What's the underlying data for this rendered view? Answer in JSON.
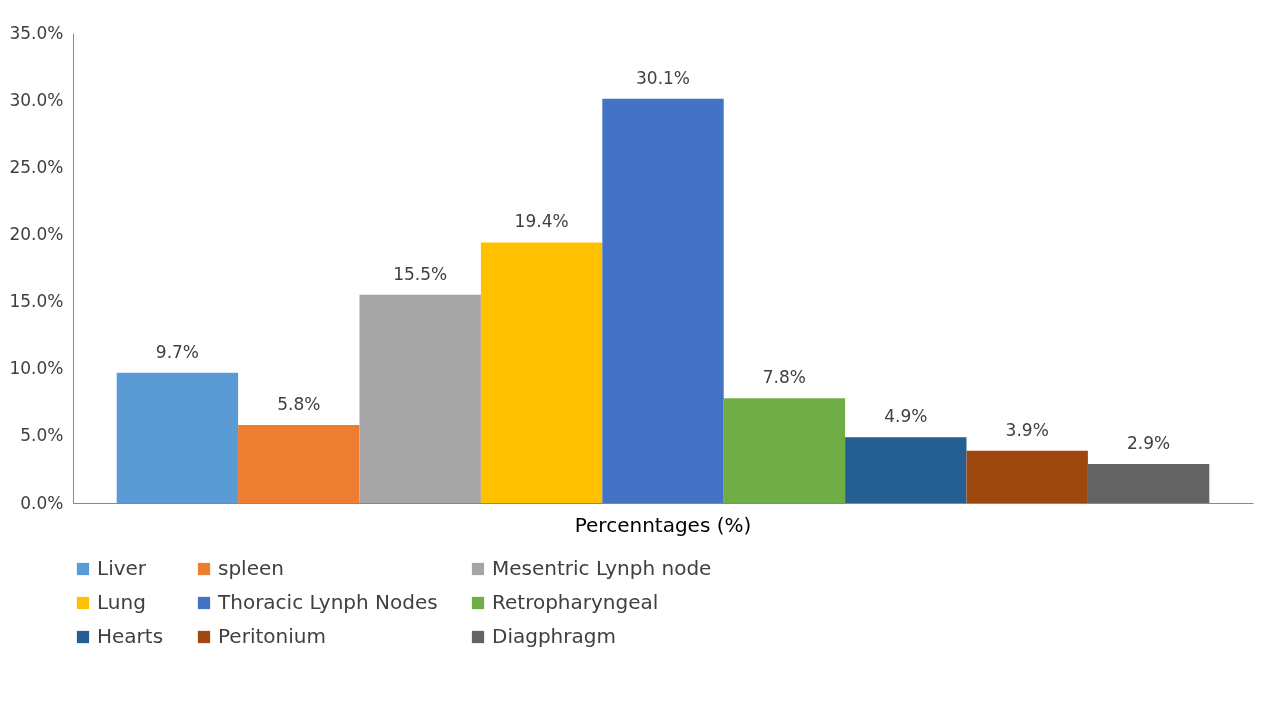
{
  "chart_data": {
    "type": "bar",
    "categories": [
      "Percenntages (%)"
    ],
    "ylim": [
      0,
      35
    ],
    "yticks": [
      {
        "value": 0,
        "label": "0.0%"
      },
      {
        "value": 5,
        "label": "5.0%"
      },
      {
        "value": 10,
        "label": "10.0%"
      },
      {
        "value": 15,
        "label": "15.0%"
      },
      {
        "value": 20,
        "label": "20.0%"
      },
      {
        "value": 25,
        "label": "25.0%"
      },
      {
        "value": 30,
        "label": "30.0%"
      },
      {
        "value": 35,
        "label": "35.0%"
      }
    ],
    "legend": "bottom",
    "series": [
      {
        "name": "Liver",
        "color": "#5b9bd5",
        "values": [
          9.7
        ],
        "value_labels": [
          "9.7%"
        ]
      },
      {
        "name": "spleen",
        "color": "#ed7d31",
        "values": [
          5.8
        ],
        "value_labels": [
          "5.8%"
        ]
      },
      {
        "name": "Mesentric Lynph node",
        "color": "#a5a5a5",
        "values": [
          15.5
        ],
        "value_labels": [
          "15.5%"
        ]
      },
      {
        "name": "Lung",
        "color": "#ffc000",
        "values": [
          19.4
        ],
        "value_labels": [
          "19.4%"
        ]
      },
      {
        "name": "Thoracic Lynph Nodes",
        "color": "#4472c4",
        "values": [
          30.1
        ],
        "value_labels": [
          "30.1%"
        ]
      },
      {
        "name": "Retropharyngeal",
        "color": "#70ad47",
        "values": [
          7.8
        ],
        "value_labels": [
          "7.8%"
        ]
      },
      {
        "name": "Hearts",
        "color": "#255e91",
        "values": [
          4.9
        ],
        "value_labels": [
          "4.9%"
        ]
      },
      {
        "name": "Peritonium",
        "color": "#9e480e",
        "values": [
          3.9
        ],
        "value_labels": [
          "3.9%"
        ]
      },
      {
        "name": "Diagphragm",
        "color": "#636363",
        "values": [
          2.9
        ],
        "value_labels": [
          "2.9%"
        ]
      }
    ]
  }
}
